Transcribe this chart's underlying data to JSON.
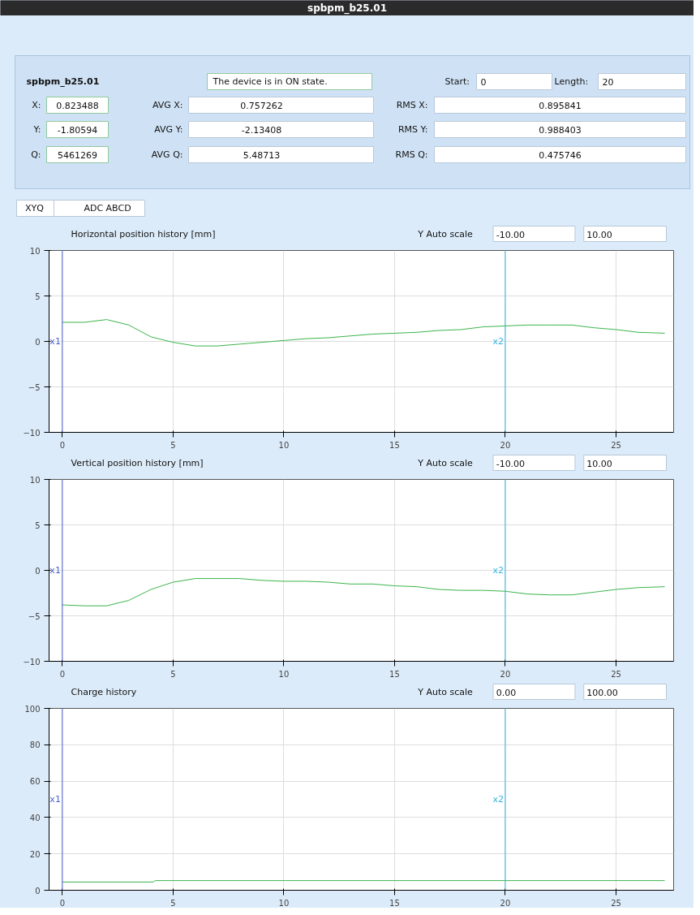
{
  "chart_data": [
    {
      "type": "other",
      "title": "spbpm_b25.01",
      "annotations": [
        "spbpm_b25.01",
        "The device is in ON state.",
        "Start:",
        "0",
        "Length:",
        "20",
        "X:",
        "0.823488",
        "AVG X:",
        "0.757262",
        "RMS X:",
        "0.895841",
        "Y:",
        "-1.80594",
        "AVG Y:",
        "-2.13408",
        "RMS Y:",
        "0.988403",
        "Q:",
        "5461269",
        "AVG Q:",
        "5.48713",
        "RMS Q:",
        "0.475746",
        "XYQ",
        "ADC ABCD"
      ]
    },
    {
      "type": "line",
      "title": "Horizontal position history [mm]",
      "annotations": [
        "Y Auto scale",
        "-10.00",
        "10.00"
      ],
      "xlim": [
        -0.6,
        27.6
      ],
      "ylim": [
        -10,
        10
      ],
      "xticks": [
        0,
        5,
        10,
        15,
        20,
        25
      ],
      "yticks": [
        -10,
        -5,
        0,
        5,
        10
      ],
      "grid": true,
      "x": [
        0,
        1,
        2,
        3,
        4,
        5,
        6,
        7,
        8,
        9,
        10,
        11,
        12,
        13,
        14,
        15,
        16,
        17,
        18,
        19,
        20,
        21,
        22,
        23,
        24,
        25,
        26,
        27.2
      ],
      "series": [
        {
          "color": "#3cb44b",
          "values": [
            2.1,
            2.1,
            2.4,
            1.8,
            0.5,
            -0.1,
            -0.5,
            -0.5,
            -0.3,
            -0.1,
            0.1,
            0.3,
            0.4,
            0.6,
            0.8,
            0.9,
            1.0,
            1.2,
            1.3,
            1.6,
            1.7,
            1.8,
            1.8,
            1.8,
            1.5,
            1.3,
            1.0,
            0.9
          ]
        }
      ],
      "ref_lines": [
        {
          "axis": "x",
          "value": 0,
          "label": "x1",
          "color": "#4a63d1"
        },
        {
          "axis": "x",
          "value": 20,
          "label": "x2",
          "color": "#33b5e5"
        }
      ]
    },
    {
      "type": "line",
      "title": "Vertical position history [mm]",
      "annotations": [
        "Y Auto scale",
        "-10.00",
        "10.00"
      ],
      "xlim": [
        -0.6,
        27.6
      ],
      "ylim": [
        -10,
        10
      ],
      "xticks": [
        0,
        5,
        10,
        15,
        20,
        25
      ],
      "yticks": [
        -10,
        -5,
        0,
        5,
        10
      ],
      "grid": true,
      "x": [
        0,
        1,
        2,
        3,
        4,
        5,
        6,
        7,
        8,
        9,
        10,
        11,
        12,
        13,
        14,
        15,
        16,
        17,
        18,
        19,
        20,
        21,
        22,
        23,
        24,
        25,
        26,
        27.2
      ],
      "series": [
        {
          "color": "#3cb44b",
          "values": [
            -3.8,
            -3.9,
            -3.9,
            -3.3,
            -2.1,
            -1.3,
            -0.9,
            -0.9,
            -0.9,
            -1.1,
            -1.2,
            -1.2,
            -1.3,
            -1.5,
            -1.5,
            -1.7,
            -1.8,
            -2.1,
            -2.2,
            -2.2,
            -2.3,
            -2.6,
            -2.7,
            -2.7,
            -2.4,
            -2.1,
            -1.9,
            -1.8
          ]
        }
      ],
      "ref_lines": [
        {
          "axis": "x",
          "value": 0,
          "label": "x1",
          "color": "#4a63d1"
        },
        {
          "axis": "x",
          "value": 20,
          "label": "x2",
          "color": "#33b5e5"
        }
      ]
    },
    {
      "type": "line",
      "title": "Charge history",
      "annotations": [
        "Y Auto scale",
        "0.00",
        "100.00"
      ],
      "xlim": [
        -0.6,
        27.6
      ],
      "ylim": [
        0,
        100
      ],
      "xticks": [
        0,
        5,
        10,
        15,
        20,
        25
      ],
      "yticks": [
        0,
        20,
        40,
        60,
        80,
        100
      ],
      "grid": true,
      "x": [
        0,
        4.1,
        4.2,
        27.2
      ],
      "series": [
        {
          "color": "#3cb44b",
          "values": [
            4.5,
            4.5,
            5.3,
            5.3
          ]
        }
      ],
      "ref_lines": [
        {
          "axis": "x",
          "value": 0,
          "label": "x1",
          "color": "#4a63d1"
        },
        {
          "axis": "x",
          "value": 20,
          "label": "x2",
          "color": "#33b5e5"
        }
      ]
    }
  ]
}
